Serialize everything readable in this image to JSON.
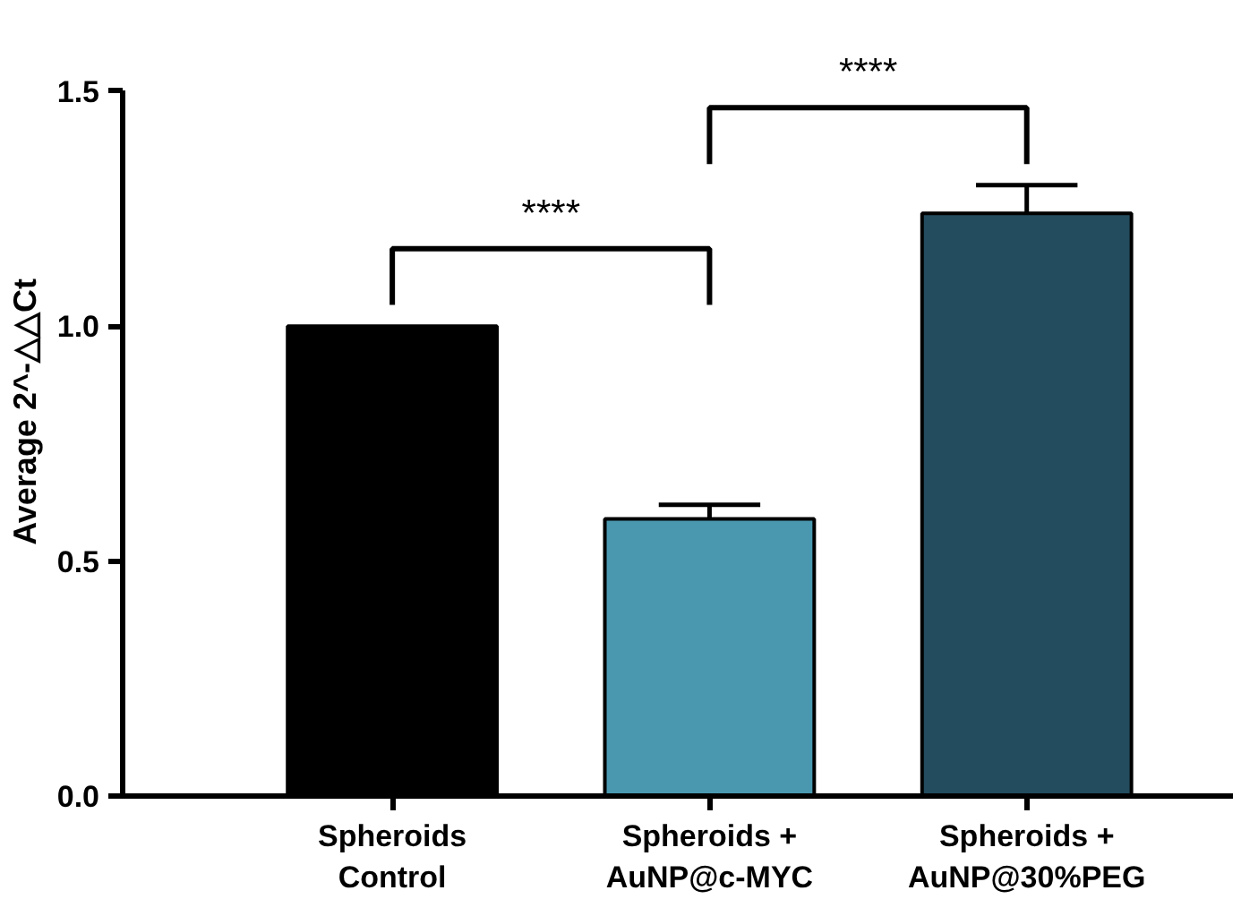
{
  "chart_data": {
    "type": "bar",
    "ylabel": "Average 2^-△△Ct",
    "categories": [
      "Spheroids\nControl",
      "Spheroids +\nAuNP@c-MYC",
      "Spheroids +\nAuNP@30%PEG"
    ],
    "values": [
      1.0,
      0.59,
      1.24
    ],
    "colors": [
      "#000000",
      "#4a98b0",
      "#234c5e"
    ],
    "errors": [
      null,
      0.03,
      0.06
    ],
    "ylim": [
      0,
      1.5
    ],
    "yticks": [
      {
        "value": 0,
        "label": "0.0"
      },
      0.5,
      {
        "value": 1,
        "label": "1.0"
      },
      1.5
    ],
    "annotations": [
      "****",
      "****"
    ],
    "grid": false
  }
}
